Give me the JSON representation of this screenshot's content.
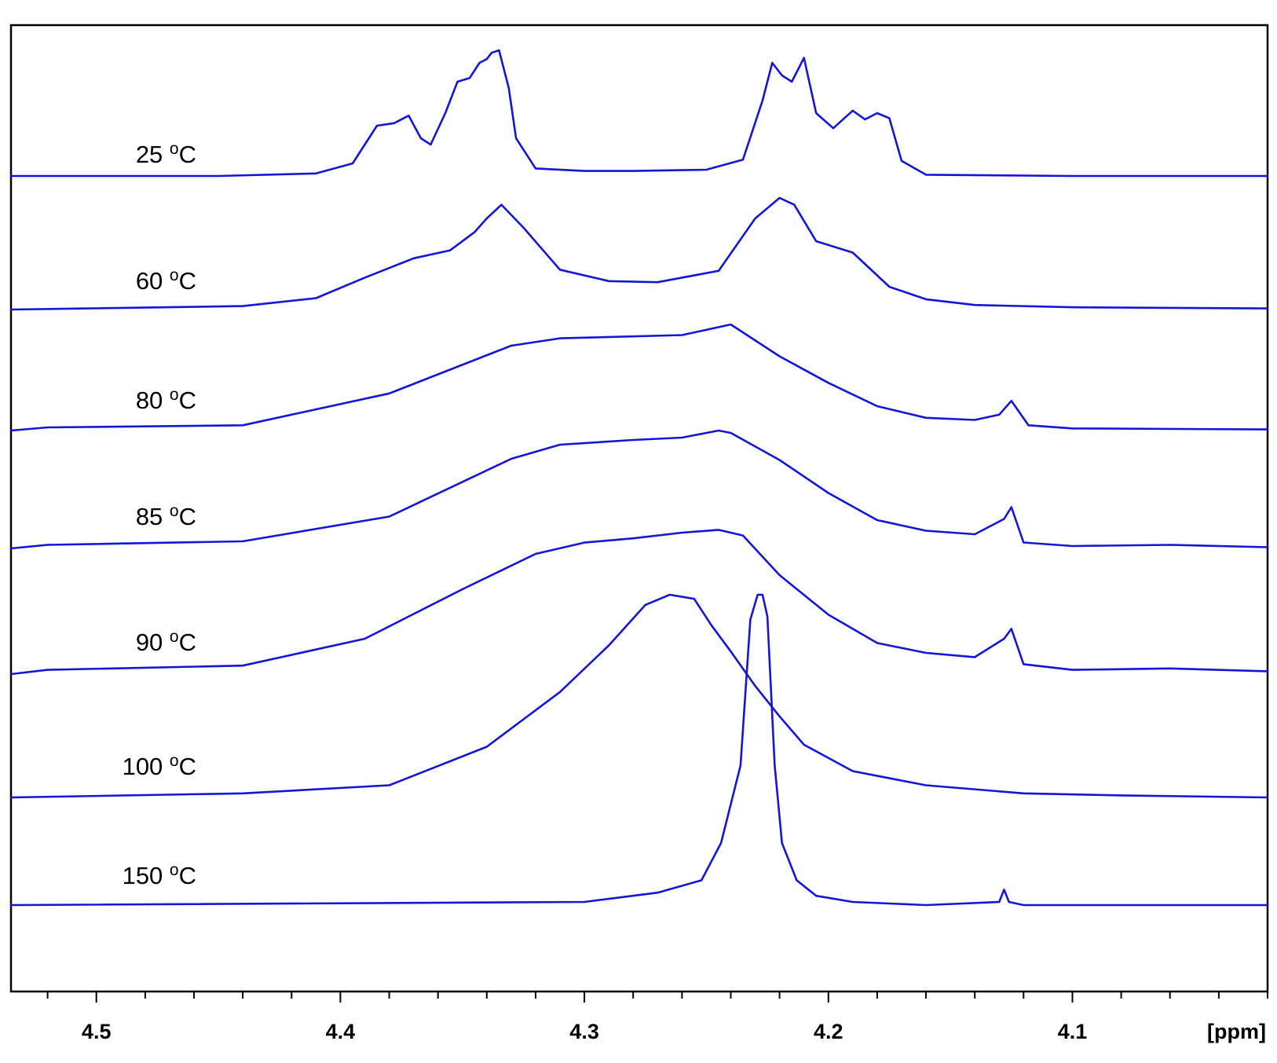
{
  "chart_data": {
    "type": "line",
    "title": "",
    "xlabel": "[ppm]",
    "ylabel": "",
    "xlim": [
      4.535,
      4.02
    ],
    "x_reversed": true,
    "grid": false,
    "legend": "none",
    "line_color": "#1515d6",
    "x_ticks": [
      4.5,
      4.4,
      4.3,
      4.2,
      4.1
    ],
    "x_tick_labels": [
      "4.5",
      "4.4",
      "4.3",
      "4.2",
      "4.1"
    ],
    "series": [
      {
        "name": "25 °C",
        "temp": "25",
        "unit": "oC",
        "x": [
          4.535,
          4.45,
          4.41,
          4.395,
          4.385,
          4.378,
          4.372,
          4.367,
          4.363,
          4.357,
          4.352,
          4.347,
          4.343,
          4.34,
          4.338,
          4.335,
          4.331,
          4.328,
          4.32,
          4.3,
          4.28,
          4.25,
          4.235,
          4.227,
          4.223,
          4.219,
          4.215,
          4.21,
          4.205,
          4.198,
          4.19,
          4.185,
          4.18,
          4.175,
          4.17,
          4.16,
          4.1,
          4.02
        ],
        "y": [
          0,
          0,
          0.02,
          0.1,
          0.4,
          0.42,
          0.48,
          0.3,
          0.25,
          0.5,
          0.75,
          0.78,
          0.9,
          0.93,
          0.98,
          1.0,
          0.7,
          0.3,
          0.06,
          0.04,
          0.04,
          0.05,
          0.13,
          0.6,
          0.9,
          0.8,
          0.75,
          0.94,
          0.5,
          0.38,
          0.52,
          0.45,
          0.5,
          0.46,
          0.12,
          0.01,
          0,
          0
        ]
      },
      {
        "name": "60 °C",
        "temp": "60",
        "unit": "oC",
        "x": [
          4.535,
          4.44,
          4.41,
          4.39,
          4.37,
          4.355,
          4.345,
          4.34,
          4.334,
          4.325,
          4.31,
          4.29,
          4.27,
          4.245,
          4.23,
          4.22,
          4.214,
          4.205,
          4.19,
          4.175,
          4.16,
          4.14,
          4.1,
          4.02
        ],
        "y": [
          0,
          0.03,
          0.1,
          0.28,
          0.45,
          0.52,
          0.68,
          0.8,
          0.92,
          0.72,
          0.35,
          0.25,
          0.24,
          0.34,
          0.8,
          0.98,
          0.92,
          0.6,
          0.5,
          0.2,
          0.09,
          0.04,
          0.02,
          0.01
        ]
      },
      {
        "name": "80 °C",
        "temp": "80",
        "unit": "oC",
        "x": [
          4.535,
          4.52,
          4.44,
          4.38,
          4.33,
          4.31,
          4.26,
          4.24,
          4.22,
          4.2,
          4.18,
          4.16,
          4.14,
          4.13,
          4.125,
          4.118,
          4.1,
          4.02
        ],
        "y": [
          0,
          0.03,
          0.05,
          0.35,
          0.8,
          0.87,
          0.9,
          1.0,
          0.7,
          0.45,
          0.23,
          0.12,
          0.1,
          0.15,
          0.28,
          0.05,
          0.02,
          0.01
        ]
      },
      {
        "name": "85 °C",
        "temp": "85",
        "unit": "oC",
        "x": [
          4.535,
          4.52,
          4.44,
          4.38,
          4.33,
          4.31,
          4.28,
          4.26,
          4.245,
          4.24,
          4.22,
          4.2,
          4.18,
          4.16,
          4.14,
          4.128,
          4.125,
          4.12,
          4.1,
          4.06,
          4.02
        ],
        "y": [
          0,
          0.03,
          0.06,
          0.27,
          0.76,
          0.88,
          0.92,
          0.94,
          1.0,
          0.98,
          0.75,
          0.47,
          0.24,
          0.15,
          0.12,
          0.25,
          0.35,
          0.05,
          0.02,
          0.03,
          0.01
        ]
      },
      {
        "name": "90 °C",
        "temp": "90",
        "unit": "oC",
        "x": [
          4.535,
          4.52,
          4.44,
          4.39,
          4.35,
          4.32,
          4.3,
          4.28,
          4.26,
          4.245,
          4.235,
          4.22,
          4.2,
          4.18,
          4.16,
          4.14,
          4.128,
          4.125,
          4.12,
          4.1,
          4.06,
          4.02
        ],
        "y": [
          0,
          0.03,
          0.06,
          0.25,
          0.6,
          0.85,
          0.93,
          0.96,
          1.0,
          1.02,
          0.98,
          0.7,
          0.42,
          0.22,
          0.15,
          0.12,
          0.25,
          0.32,
          0.07,
          0.03,
          0.04,
          0.02
        ]
      },
      {
        "name": "100 °C",
        "temp": "100",
        "unit": "oC",
        "x": [
          4.535,
          4.44,
          4.38,
          4.34,
          4.31,
          4.29,
          4.275,
          4.265,
          4.255,
          4.248,
          4.24,
          4.23,
          4.22,
          4.21,
          4.19,
          4.16,
          4.12,
          4.08,
          4.02
        ],
        "y": [
          0,
          0.02,
          0.06,
          0.25,
          0.52,
          0.75,
          0.95,
          1.0,
          0.98,
          0.85,
          0.72,
          0.55,
          0.4,
          0.26,
          0.13,
          0.06,
          0.02,
          0.01,
          0
        ]
      },
      {
        "name": "150 °C",
        "temp": "150",
        "unit": "oC",
        "x": [
          4.535,
          4.3,
          4.27,
          4.252,
          4.244,
          4.236,
          4.232,
          4.229,
          4.227,
          4.225,
          4.222,
          4.219,
          4.213,
          4.205,
          4.19,
          4.16,
          4.13,
          4.128,
          4.126,
          4.12,
          4.08,
          4.02
        ],
        "y": [
          0,
          0.01,
          0.04,
          0.08,
          0.2,
          0.45,
          0.92,
          1.0,
          1.0,
          0.93,
          0.45,
          0.2,
          0.08,
          0.03,
          0.01,
          0,
          0.01,
          0.05,
          0.01,
          0,
          0,
          0
        ]
      }
    ]
  }
}
